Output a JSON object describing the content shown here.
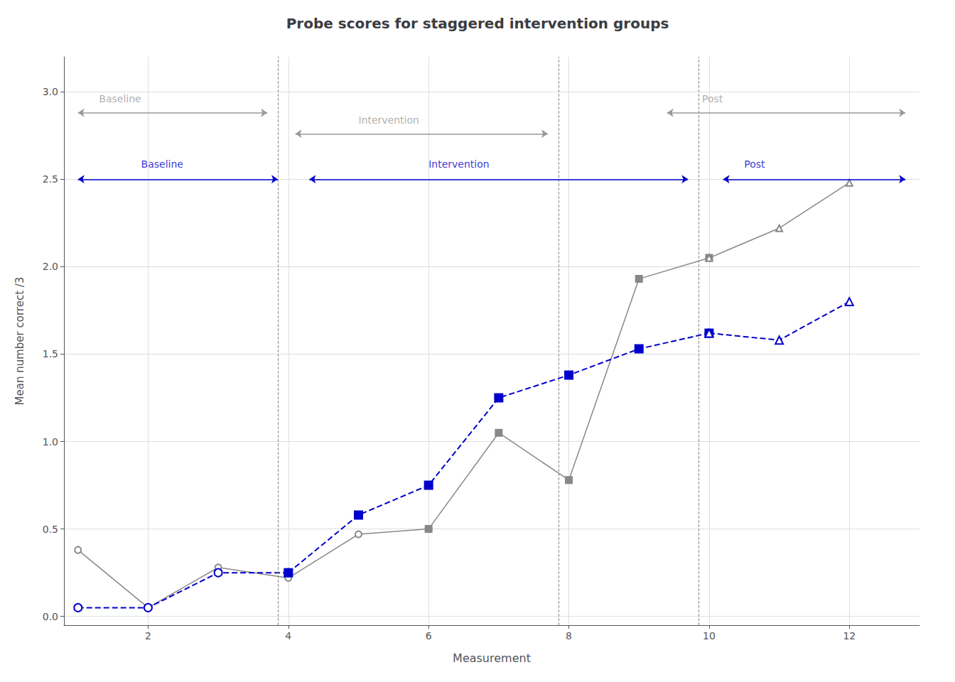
{
  "chart_data": {
    "type": "line",
    "title": "Probe scores for staggered intervention groups",
    "xlabel": "Measurement",
    "ylabel": "Mean number correct /3",
    "xlim": [
      0.8,
      13.0
    ],
    "ylim": [
      -0.05,
      3.2
    ],
    "xticks": [
      2,
      4,
      6,
      8,
      10,
      12
    ],
    "yticks": [
      {
        "value": 0.0,
        "label": "0.0"
      },
      0.5,
      {
        "value": 1.0,
        "label": "1.0"
      },
      1.5,
      {
        "value": 2.0,
        "label": "2.0"
      },
      2.5,
      {
        "value": 3.0,
        "label": "3.0"
      }
    ],
    "grid": true,
    "series": [
      {
        "color": "#888888",
        "marker": "open_circle",
        "line_style": "solid",
        "x": [
          1,
          2,
          3,
          4,
          5,
          6
        ],
        "values": [
          0.38,
          0.05,
          0.28,
          0.22,
          0.47,
          0.5
        ]
      },
      {
        "color": "#888888",
        "marker": "square",
        "line_style": "solid",
        "x": [
          6,
          7,
          8,
          9,
          10
        ],
        "values": [
          0.5,
          1.05,
          0.78,
          1.93,
          2.05
        ]
      },
      {
        "color": "#888888",
        "marker": "open_triangle",
        "line_style": "solid",
        "x": [
          10,
          11,
          12
        ],
        "values": [
          2.05,
          2.22,
          2.48
        ]
      },
      {
        "color": "#0000CC",
        "marker": "open_circle",
        "line_style": "dashed",
        "x": [
          1,
          2,
          3,
          4
        ],
        "values": [
          0.05,
          0.05,
          0.25,
          0.25
        ]
      },
      {
        "color": "#0000CC",
        "marker": "square",
        "line_style": "dashed",
        "x": [
          4,
          5,
          6,
          7,
          8,
          9,
          10
        ],
        "values": [
          0.25,
          0.58,
          0.75,
          1.25,
          1.38,
          1.53,
          1.62
        ]
      },
      {
        "color": "#0000CC",
        "marker": "open_triangle",
        "line_style": "dashed",
        "x": [
          10,
          11,
          12
        ],
        "values": [
          1.62,
          1.58,
          1.8
        ]
      }
    ],
    "vlines": [
      {
        "x": 3.85,
        "color": "#888888",
        "line_style": "dashed"
      },
      {
        "x": 7.85,
        "color": "#888888",
        "line_style": "dashed"
      },
      {
        "x": 9.85,
        "color": "#888888",
        "line_style": "dashed"
      }
    ],
    "annotations": [
      {
        "text": "Baseline",
        "x": 1.3,
        "y": 2.93,
        "color": "#999999",
        "arrow": {
          "x1": 1.0,
          "x2": 3.7,
          "y": 2.88
        }
      },
      {
        "text": "Intervention",
        "x": 5.0,
        "y": 2.81,
        "color": "#999999",
        "arrow": {
          "x1": 4.1,
          "x2": 7.7,
          "y": 2.76
        }
      },
      {
        "text": "Post",
        "x": 9.9,
        "y": 2.93,
        "color": "#999999",
        "arrow": {
          "x1": 9.4,
          "x2": 12.8,
          "y": 2.88
        }
      },
      {
        "text": "Baseline",
        "x": 1.9,
        "y": 2.56,
        "color": "#0000CC",
        "arrow": {
          "x1": 1.0,
          "x2": 3.85,
          "y": 2.5
        }
      },
      {
        "text": "Intervention",
        "x": 6.0,
        "y": 2.56,
        "color": "#0000CC",
        "arrow": {
          "x1": 4.3,
          "x2": 9.7,
          "y": 2.5
        }
      },
      {
        "text": "Post",
        "x": 10.5,
        "y": 2.56,
        "color": "#0000CC",
        "arrow": {
          "x1": 10.2,
          "x2": 12.8,
          "y": 2.5
        }
      }
    ]
  }
}
